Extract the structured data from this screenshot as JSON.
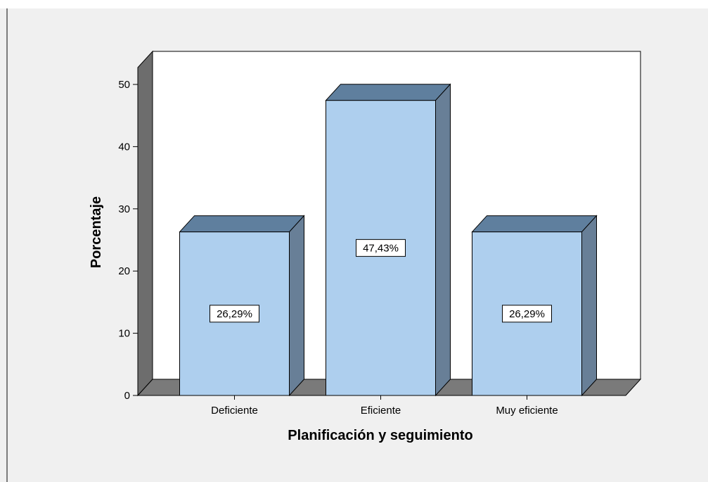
{
  "chart_data": {
    "type": "bar",
    "title": "",
    "xlabel": "Planificación y seguimiento",
    "ylabel": "Porcentaje",
    "categories": [
      "Deficiente",
      "Eficiente",
      "Muy eficiente"
    ],
    "values": [
      26.29,
      47.43,
      26.29
    ],
    "data_labels": [
      "26,29%",
      "47,43%",
      "26,29%"
    ],
    "yticks": [
      0,
      10,
      20,
      30,
      40,
      50
    ],
    "ylim": [
      0,
      52.5
    ],
    "grid": false,
    "legend": "none",
    "style": "3d",
    "colors": {
      "page_background": "#ffffff",
      "chart_background": "#f0f0f0",
      "plot_background": "#ffffff",
      "wall_side": "#6d6d6d",
      "floor": "#7a7a7a",
      "bar_front": "#aecfee",
      "bar_top": "#5f7f9e",
      "bar_side": "#687f97",
      "outline": "#000000",
      "frame_line": "#555555"
    }
  }
}
